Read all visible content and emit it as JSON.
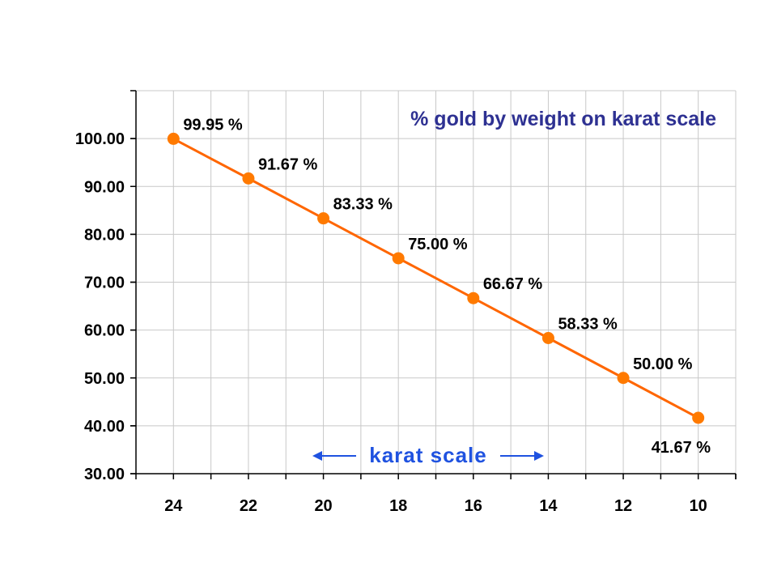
{
  "chart_data": {
    "type": "line",
    "title": "% gold by weight on karat scale",
    "xlabel": "",
    "ylabel": "",
    "x": [
      24,
      22,
      20,
      18,
      16,
      14,
      12,
      10
    ],
    "x_ticks": [
      "24",
      "22",
      "20",
      "18",
      "16",
      "14",
      "12",
      "10"
    ],
    "x_direction": "descending",
    "series": [
      {
        "values": [
          99.95,
          91.67,
          83.33,
          75.0,
          66.67,
          58.33,
          50.0,
          41.67
        ],
        "labels": [
          "99.95 %",
          "91.67 %",
          "83.33 %",
          "75.00 %",
          "66.67 %",
          "58.33 %",
          "50.00 %",
          "41.67 %"
        ]
      }
    ],
    "ylim": [
      30,
      110
    ],
    "y_ticks": [
      "30.00",
      "40.00",
      "50.00",
      "60.00",
      "70.00",
      "80.00",
      "90.00",
      "100.00"
    ],
    "xlim": [
      25,
      9
    ],
    "grid": true,
    "annotation": "karat scale",
    "colors": {
      "line": "#ff6600",
      "marker": "#ff7a00",
      "title": "#2e3192",
      "annotation": "#1f52e0",
      "grid": "#c8c8c8"
    }
  }
}
